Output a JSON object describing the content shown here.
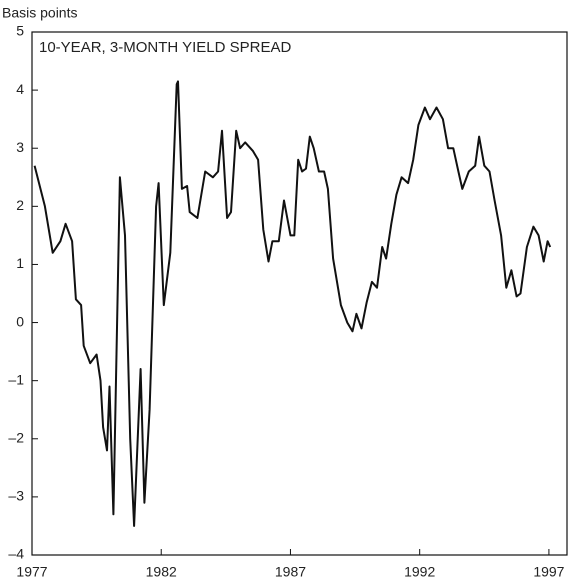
{
  "chart_data": {
    "type": "line",
    "title": "10-YEAR, 3-MONTH YIELD SPREAD",
    "y_label": "Basis points",
    "x": [
      1977.1,
      1977.5,
      1977.8,
      1978.1,
      1978.3,
      1978.55,
      1978.7,
      1978.9,
      1979.0,
      1979.25,
      1979.5,
      1979.65,
      1979.75,
      1979.9,
      1980.0,
      1980.15,
      1980.4,
      1980.6,
      1980.8,
      1980.95,
      1981.2,
      1981.35,
      1981.55,
      1981.8,
      1981.9,
      1982.1,
      1982.35,
      1982.6,
      1982.65,
      1982.8,
      1983.0,
      1983.1,
      1983.4,
      1983.7,
      1984.0,
      1984.2,
      1984.35,
      1984.55,
      1984.7,
      1984.9,
      1985.05,
      1985.25,
      1985.55,
      1985.75,
      1985.95,
      1986.15,
      1986.3,
      1986.55,
      1986.75,
      1987.0,
      1987.15,
      1987.3,
      1987.45,
      1987.6,
      1987.75,
      1987.9,
      1988.1,
      1988.3,
      1988.45,
      1988.65,
      1988.95,
      1989.2,
      1989.4,
      1989.55,
      1989.75,
      1989.95,
      1990.15,
      1990.35,
      1990.55,
      1990.7,
      1990.9,
      1991.1,
      1991.3,
      1991.55,
      1991.75,
      1991.95,
      1992.2,
      1992.4,
      1992.65,
      1992.9,
      1993.1,
      1993.3,
      1993.5,
      1993.65,
      1993.9,
      1994.15,
      1994.3,
      1994.5,
      1994.7,
      1994.9,
      1995.15,
      1995.35,
      1995.55,
      1995.75,
      1995.9,
      1996.15,
      1996.4,
      1996.6,
      1996.8,
      1996.95,
      1997.05
    ],
    "series": [
      {
        "name": "Yield spread",
        "color": "#111111",
        "values": [
          2.7,
          2.0,
          1.2,
          1.4,
          1.7,
          1.4,
          0.4,
          0.3,
          -0.4,
          -0.7,
          -0.55,
          -1.0,
          -1.8,
          -2.2,
          -1.1,
          -3.3,
          2.5,
          1.5,
          -2.0,
          -3.5,
          -0.8,
          -3.1,
          -1.5,
          2.0,
          2.4,
          0.3,
          1.2,
          4.1,
          4.15,
          2.3,
          2.35,
          1.9,
          1.8,
          2.6,
          2.5,
          2.6,
          3.3,
          1.8,
          1.9,
          3.3,
          3.0,
          3.1,
          2.95,
          2.8,
          1.6,
          1.05,
          1.4,
          1.4,
          2.1,
          1.5,
          1.5,
          2.8,
          2.6,
          2.65,
          3.2,
          3.0,
          2.6,
          2.6,
          2.3,
          1.1,
          0.3,
          0.0,
          -0.15,
          0.15,
          -0.1,
          0.35,
          0.7,
          0.6,
          1.3,
          1.1,
          1.7,
          2.2,
          2.5,
          2.4,
          2.8,
          3.4,
          3.7,
          3.5,
          3.7,
          3.5,
          3.0,
          3.0,
          2.6,
          2.3,
          2.6,
          2.7,
          3.2,
          2.7,
          2.6,
          2.1,
          1.5,
          0.6,
          0.9,
          0.45,
          0.5,
          1.3,
          1.65,
          1.5,
          1.05,
          1.4,
          1.3
        ]
      }
    ],
    "xlim": [
      1977,
      1997.7
    ],
    "xticks": [
      1977,
      1982,
      1987,
      1992,
      1997
    ],
    "ylim": [
      -4,
      5
    ],
    "yticks": [
      {
        "value": -4,
        "label": "–4"
      },
      {
        "value": -3,
        "label": "–3"
      },
      {
        "value": -2,
        "label": "–2"
      },
      {
        "value": -1,
        "label": "–1"
      },
      0,
      1,
      2,
      3,
      4,
      5
    ],
    "grid": false
  }
}
